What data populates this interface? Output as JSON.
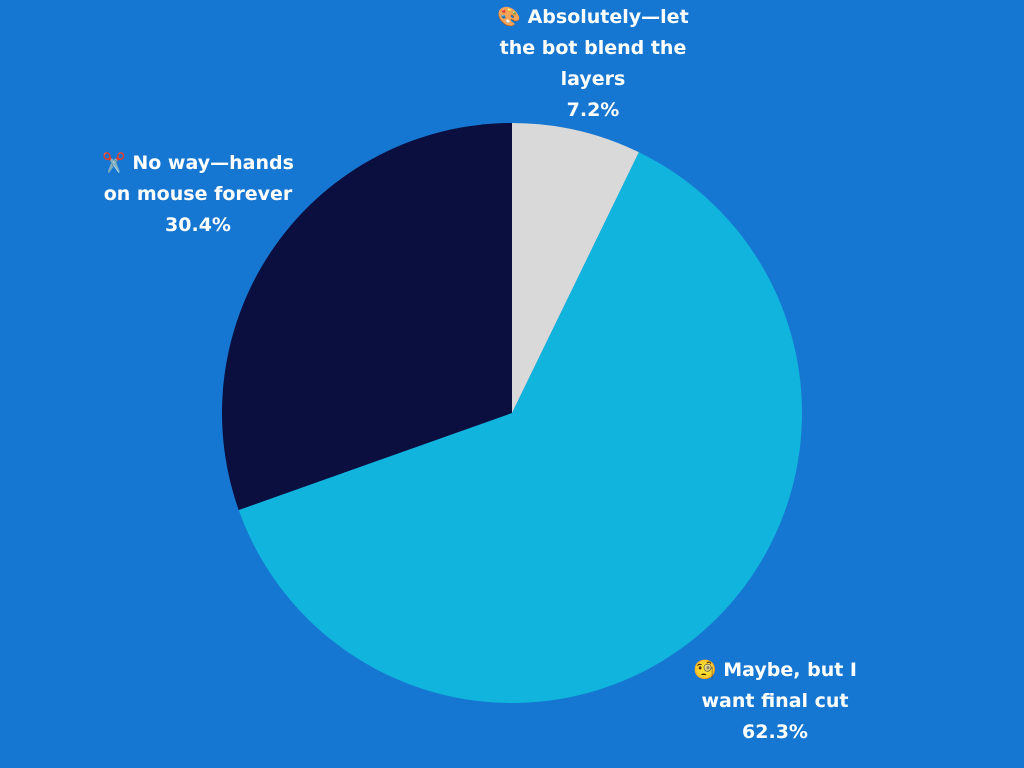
{
  "chart_data": {
    "type": "pie",
    "categories": [
      "🎨 Absolutely—let the bot blend the layers",
      "🧐 Maybe, but I want final cut",
      "✂️ No way—hands on mouse forever"
    ],
    "values": [
      7.2,
      62.3,
      30.4
    ],
    "value_labels": [
      "7.2%",
      "62.3%",
      "30.4%"
    ],
    "colors": [
      "#d9d9d9",
      "#10b4dc",
      "#0a0f3f"
    ]
  }
}
